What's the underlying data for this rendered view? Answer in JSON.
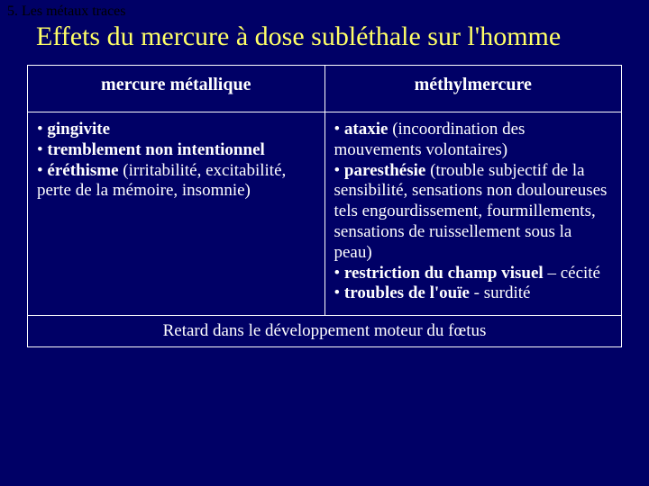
{
  "colors": {
    "background": "#000066",
    "title": "#ffff66",
    "text": "#ffffff",
    "breadcrumb": "#000000",
    "border": "#ffffff"
  },
  "typography": {
    "family": "Times New Roman",
    "breadcrumb_size": 16,
    "title_size": 30,
    "header_size": 20,
    "body_size": 19
  },
  "breadcrumb": "5. Les métaux traces",
  "title": "Effets du mercure à dose subléthale sur l'homme",
  "table": {
    "columns": [
      {
        "header": "mercure métallique"
      },
      {
        "header": "méthylmercure"
      }
    ],
    "left_html": "• <b>gingivite</b><br>• <b>tremblement non intentionnel</b><br>• <b>éréthisme</b> (irritabilité, excitabilité, perte de la mémoire, insomnie)",
    "right_html": "• <b>ataxie</b> (incoordination des mouvements volontaires)<br>• <b>paresthésie</b> (trouble subjectif de la sensibilité, sensations non douloureuses tels engourdissement, fourmillements, sensations de ruissellement sous la peau)<br>• <b>restriction du champ visuel</b> – cécité<br>• <b>troubles de l'ouïe</b> - surdité",
    "footer": "Retard dans le développement moteur du fœtus"
  }
}
